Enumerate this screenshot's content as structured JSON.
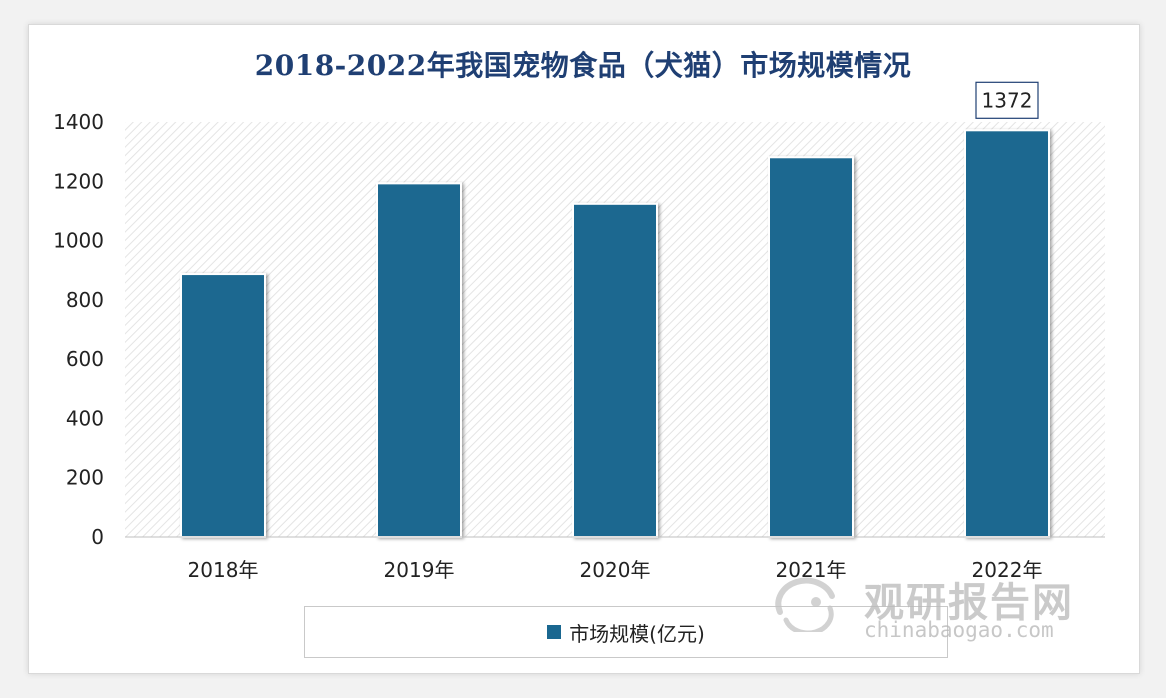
{
  "chart_data": {
    "type": "bar",
    "title": "2018-2022年我国宠物食品（犬猫）市场规模情况",
    "categories": [
      "2018年",
      "2019年",
      "2020年",
      "2021年",
      "2022年"
    ],
    "series": [
      {
        "name": "市场规模(亿元)",
        "values": [
          887,
          1193,
          1124,
          1281,
          1372
        ]
      }
    ],
    "data_labels": [
      {
        "category": "2022年",
        "text": "1372"
      }
    ],
    "ylim": [
      0,
      1400
    ],
    "yticks": [
      0,
      200,
      400,
      600,
      800,
      1000,
      1200,
      1400
    ],
    "grid": false,
    "plot_background": "diagonal hatch",
    "legend_position": "bottom",
    "bar_color": "#1a6790",
    "title_color": "#1f3f73"
  },
  "watermark": {
    "text": "观研报告网",
    "url": "chinabaogao.com"
  }
}
